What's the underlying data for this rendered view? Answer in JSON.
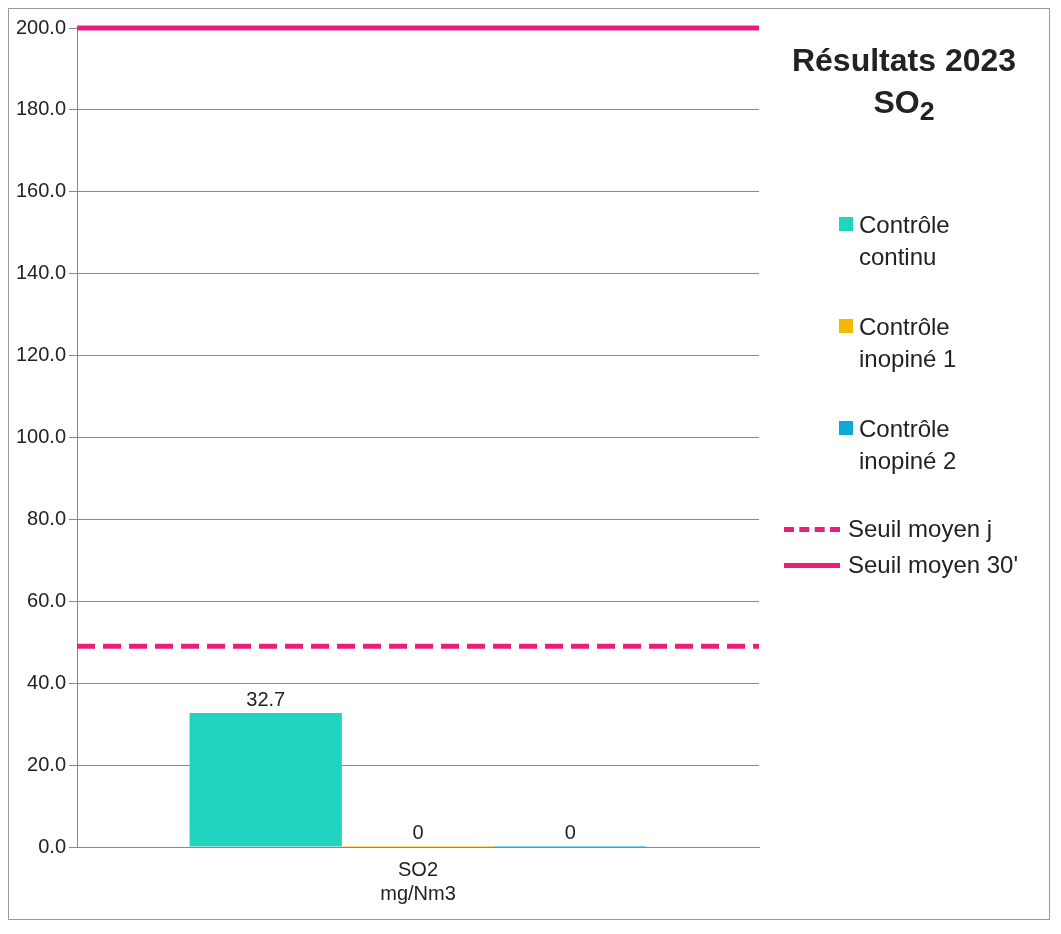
{
  "chart_data": {
    "type": "bar",
    "title": "Résultats 2023\nSO$_{2}$",
    "categories": [
      "SO2\nmg/Nm3"
    ],
    "series": [
      {
        "name": "Contrôle continu",
        "color": "#22d3c0",
        "values": [
          32.7
        ]
      },
      {
        "name": "Contrôle inopiné 1",
        "color": "#f5b800",
        "values": [
          0
        ]
      },
      {
        "name": "Contrôle inopiné 2",
        "color": "#0ba8d8",
        "values": [
          0
        ]
      }
    ],
    "ref_lines": [
      {
        "axis": "y",
        "value": 49,
        "label": "Seuil moyen j",
        "color": "#e91e7a",
        "line_style": "dashed"
      },
      {
        "axis": "y",
        "value": 200,
        "label": "Seuil moyen 30'",
        "color": "#e91e7a",
        "line_style": "solid"
      }
    ],
    "ylim": [
      0,
      200
    ],
    "yticks": [
      {
        "value": 0,
        "label": "0.0"
      },
      {
        "value": 20,
        "label": "20.0"
      },
      {
        "value": 40,
        "label": "40.0"
      },
      {
        "value": 60,
        "label": "60.0"
      },
      {
        "value": 80,
        "label": "80.0"
      },
      {
        "value": 100,
        "label": "100.0"
      },
      {
        "value": 120,
        "label": "120.0"
      },
      {
        "value": 140,
        "label": "140.0"
      },
      {
        "value": 160,
        "label": "160.0"
      },
      {
        "value": 180,
        "label": "180.0"
      },
      {
        "value": 200,
        "label": "200.0"
      }
    ],
    "grid": "y",
    "data_labels": true,
    "legend": "right"
  }
}
